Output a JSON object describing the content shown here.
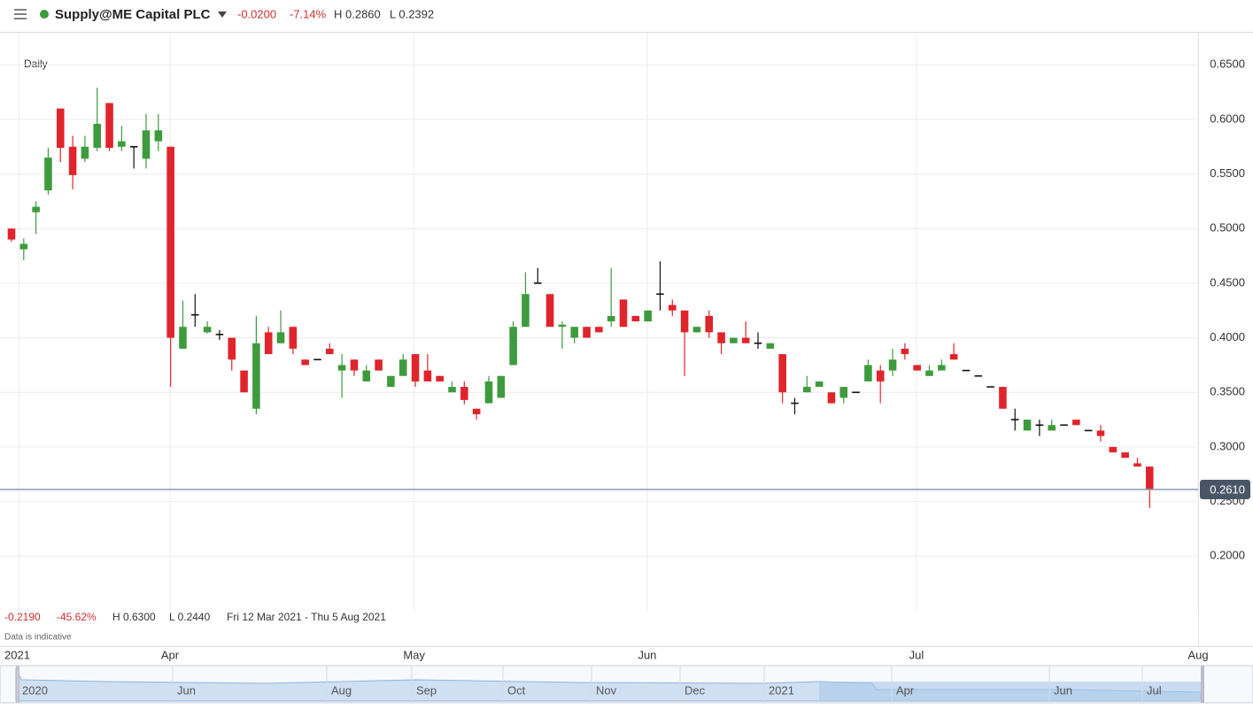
{
  "header": {
    "instrument": "Supply@ME Capital PLC",
    "change": "-0.0200",
    "change_pct": "-7.14%",
    "high": "H 0.2860",
    "low": "L 0.2392"
  },
  "interval": "Daily",
  "summary": {
    "change": "-0.2190",
    "change_pct": "-45.62%",
    "high": "H 0.6300",
    "low": "L 0.2440",
    "range": "Fri 12 Mar 2021 - Thu 5 Aug 2021",
    "note": "Data is indicative"
  },
  "navigator": {
    "labels": [
      "2020",
      "Jun",
      "Aug",
      "Sep",
      "Oct",
      "Nov",
      "Dec",
      "2021",
      "Apr",
      "Jun",
      "Jul"
    ]
  },
  "chart_data": {
    "type": "candlestick",
    "grid": true,
    "up_color": "#3d9b3d",
    "down_color": "#e0242b",
    "doji_color": "#111111",
    "xlim": [
      -0.94,
      96.96
    ],
    "xticks": [
      {
        "value": 0.6,
        "label": "2021"
      },
      {
        "value": 12.95,
        "label": "Apr"
      },
      {
        "value": 32.9,
        "label": "May"
      },
      {
        "value": 51.95,
        "label": "Jun"
      },
      {
        "value": 73.95,
        "label": "Jul"
      },
      {
        "value": 96.96,
        "label": "Aug"
      }
    ],
    "ylim": [
      0.1175,
      0.6794
    ],
    "yticks": [
      {
        "value": 0.2,
        "label": "0.2000"
      },
      {
        "value": 0.25,
        "label": "0.2500"
      },
      {
        "value": 0.3,
        "label": "0.3000"
      },
      {
        "value": 0.35,
        "label": "0.3500"
      },
      {
        "value": 0.4,
        "label": "0.4000"
      },
      {
        "value": 0.45,
        "label": "0.4500"
      },
      {
        "value": 0.5,
        "label": "0.5000"
      },
      {
        "value": 0.55,
        "label": "0.5500"
      },
      {
        "value": 0.6,
        "label": "0.6000"
      },
      {
        "value": 0.65,
        "label": "0.6500"
      }
    ],
    "last_price": {
      "value": 0.261,
      "label": "0.2610",
      "color": "#8a9bb5"
    },
    "open": [
      0.5,
      0.481,
      0.515,
      0.535,
      0.61,
      0.575,
      0.564,
      0.574,
      0.615,
      0.575,
      0.575,
      0.564,
      0.58,
      0.575,
      0.39,
      0.421,
      0.405,
      0.403,
      0.4,
      0.37,
      0.335,
      0.405,
      0.395,
      0.41,
      0.38,
      0.38,
      0.39,
      0.37,
      0.38,
      0.36,
      0.38,
      0.355,
      0.365,
      0.385,
      0.37,
      0.365,
      0.35,
      0.355,
      0.335,
      0.34,
      0.345,
      0.375,
      0.41,
      0.45,
      0.44,
      0.41,
      0.4,
      0.41,
      0.41,
      0.415,
      0.435,
      0.42,
      0.415,
      0.44,
      0.43,
      0.425,
      0.405,
      0.42,
      0.405,
      0.395,
      0.4,
      0.395,
      0.39,
      0.385,
      0.34,
      0.35,
      0.355,
      0.35,
      0.345,
      0.35,
      0.36,
      0.37,
      0.37,
      0.39,
      0.375,
      0.365,
      0.37,
      0.385,
      0.37,
      0.365,
      0.355,
      0.355,
      0.325,
      0.315,
      0.32,
      0.315,
      0.32,
      0.325,
      0.315,
      0.315,
      0.3,
      0.295,
      0.285,
      0.282
    ],
    "high": [
      0.5,
      0.491,
      0.525,
      0.574,
      0.61,
      0.585,
      0.585,
      0.629,
      0.615,
      0.594,
      0.575,
      0.605,
      0.605,
      0.575,
      0.434,
      0.44,
      0.415,
      0.407,
      0.4,
      0.37,
      0.42,
      0.41,
      0.425,
      0.41,
      0.38,
      0.38,
      0.395,
      0.385,
      0.38,
      0.375,
      0.38,
      0.365,
      0.385,
      0.385,
      0.385,
      0.365,
      0.36,
      0.36,
      0.335,
      0.365,
      0.365,
      0.415,
      0.46,
      0.464,
      0.44,
      0.415,
      0.41,
      0.41,
      0.41,
      0.464,
      0.435,
      0.42,
      0.425,
      0.47,
      0.435,
      0.425,
      0.41,
      0.425,
      0.405,
      0.4,
      0.415,
      0.405,
      0.395,
      0.385,
      0.345,
      0.365,
      0.36,
      0.35,
      0.355,
      0.35,
      0.38,
      0.375,
      0.39,
      0.395,
      0.375,
      0.375,
      0.38,
      0.395,
      0.37,
      0.365,
      0.355,
      0.355,
      0.335,
      0.325,
      0.325,
      0.325,
      0.32,
      0.325,
      0.315,
      0.32,
      0.3,
      0.295,
      0.29,
      0.282
    ],
    "low": [
      0.488,
      0.471,
      0.495,
      0.531,
      0.561,
      0.536,
      0.561,
      0.571,
      0.571,
      0.571,
      0.555,
      0.555,
      0.571,
      0.355,
      0.39,
      0.41,
      0.404,
      0.398,
      0.37,
      0.35,
      0.33,
      0.385,
      0.395,
      0.385,
      0.375,
      0.38,
      0.385,
      0.345,
      0.365,
      0.36,
      0.37,
      0.355,
      0.365,
      0.355,
      0.36,
      0.36,
      0.35,
      0.339,
      0.325,
      0.34,
      0.345,
      0.375,
      0.41,
      0.45,
      0.41,
      0.39,
      0.395,
      0.4,
      0.405,
      0.41,
      0.41,
      0.415,
      0.415,
      0.425,
      0.42,
      0.365,
      0.405,
      0.4,
      0.385,
      0.395,
      0.395,
      0.39,
      0.39,
      0.34,
      0.33,
      0.35,
      0.355,
      0.34,
      0.34,
      0.35,
      0.36,
      0.34,
      0.365,
      0.38,
      0.37,
      0.365,
      0.37,
      0.38,
      0.37,
      0.365,
      0.355,
      0.335,
      0.315,
      0.315,
      0.31,
      0.315,
      0.32,
      0.32,
      0.315,
      0.305,
      0.295,
      0.29,
      0.282,
      0.244
    ],
    "close": [
      0.49,
      0.486,
      0.52,
      0.565,
      0.574,
      0.549,
      0.575,
      0.596,
      0.574,
      0.58,
      0.575,
      0.59,
      0.59,
      0.4,
      0.41,
      0.421,
      0.41,
      0.403,
      0.38,
      0.35,
      0.395,
      0.385,
      0.405,
      0.39,
      0.375,
      0.38,
      0.385,
      0.375,
      0.37,
      0.37,
      0.37,
      0.365,
      0.38,
      0.36,
      0.36,
      0.36,
      0.355,
      0.343,
      0.33,
      0.36,
      0.365,
      0.41,
      0.44,
      0.45,
      0.41,
      0.412,
      0.41,
      0.4,
      0.405,
      0.42,
      0.41,
      0.415,
      0.425,
      0.44,
      0.425,
      0.405,
      0.41,
      0.405,
      0.395,
      0.4,
      0.395,
      0.395,
      0.395,
      0.35,
      0.34,
      0.355,
      0.36,
      0.34,
      0.355,
      0.35,
      0.375,
      0.36,
      0.38,
      0.385,
      0.37,
      0.37,
      0.375,
      0.38,
      0.37,
      0.365,
      0.355,
      0.335,
      0.325,
      0.325,
      0.32,
      0.32,
      0.32,
      0.32,
      0.315,
      0.31,
      0.295,
      0.29,
      0.282,
      0.261
    ]
  }
}
